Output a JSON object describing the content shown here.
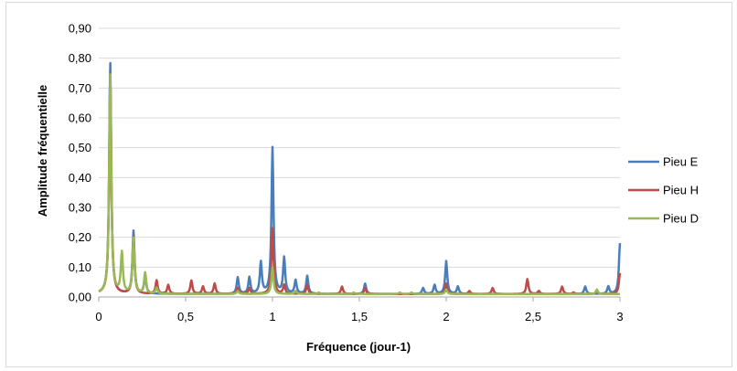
{
  "chart_data": {
    "type": "line",
    "title": "",
    "xlabel": "Fréquence (jour-1)",
    "ylabel": "Amplitude fréquentielle",
    "xlim": [
      0,
      3
    ],
    "ylim": [
      0,
      0.9
    ],
    "x_ticks": [
      "0",
      "0,5",
      "1",
      "1,5",
      "2",
      "2,5",
      "3"
    ],
    "x_tick_values": [
      0,
      0.5,
      1,
      1.5,
      2,
      2.5,
      3
    ],
    "y_ticks": [
      "0,00",
      "0,10",
      "0,20",
      "0,30",
      "0,40",
      "0,50",
      "0,60",
      "0,70",
      "0,80",
      "0,90"
    ],
    "y_tick_values": [
      0,
      0.1,
      0.2,
      0.3,
      0.4,
      0.5,
      0.6,
      0.7,
      0.8,
      0.9
    ],
    "grid": "horizontal",
    "legend_position": "right",
    "baseline": 0.01,
    "series": [
      {
        "name": "Pieu E",
        "color": "#4a7ebb",
        "peaks": [
          [
            0.066,
            0.79
          ],
          [
            0.2,
            0.22
          ],
          [
            0.267,
            0.07
          ],
          [
            0.8,
            0.065
          ],
          [
            0.867,
            0.065
          ],
          [
            0.933,
            0.115
          ],
          [
            1.0,
            0.5
          ],
          [
            1.067,
            0.13
          ],
          [
            1.133,
            0.055
          ],
          [
            1.2,
            0.07
          ],
          [
            1.533,
            0.045
          ],
          [
            1.867,
            0.03
          ],
          [
            1.933,
            0.04
          ],
          [
            2.0,
            0.12
          ],
          [
            2.067,
            0.035
          ],
          [
            2.8,
            0.035
          ],
          [
            2.933,
            0.035
          ],
          [
            3.0,
            0.18
          ]
        ]
      },
      {
        "name": "Pieu H",
        "color": "#be4b48",
        "peaks": [
          [
            0.066,
            0.75
          ],
          [
            0.2,
            0.2
          ],
          [
            0.333,
            0.055
          ],
          [
            0.4,
            0.04
          ],
          [
            0.533,
            0.055
          ],
          [
            0.6,
            0.035
          ],
          [
            0.667,
            0.045
          ],
          [
            0.8,
            0.03
          ],
          [
            0.867,
            0.03
          ],
          [
            1.0,
            0.23
          ],
          [
            1.067,
            0.04
          ],
          [
            1.2,
            0.04
          ],
          [
            1.4,
            0.035
          ],
          [
            1.533,
            0.03
          ],
          [
            2.0,
            0.045
          ],
          [
            2.133,
            0.02
          ],
          [
            2.267,
            0.03
          ],
          [
            2.467,
            0.06
          ],
          [
            2.533,
            0.02
          ],
          [
            2.667,
            0.035
          ],
          [
            2.733,
            0.015
          ],
          [
            2.867,
            0.02
          ],
          [
            3.0,
            0.08
          ]
        ]
      },
      {
        "name": "Pieu D",
        "color": "#98b954",
        "peaks": [
          [
            0.066,
            0.75
          ],
          [
            0.133,
            0.145
          ],
          [
            0.2,
            0.195
          ],
          [
            0.267,
            0.08
          ],
          [
            0.333,
            0.03
          ],
          [
            0.8,
            0.02
          ],
          [
            1.0,
            0.1
          ],
          [
            1.133,
            0.02
          ],
          [
            1.267,
            0.015
          ],
          [
            1.467,
            0.015
          ],
          [
            1.733,
            0.015
          ],
          [
            1.8,
            0.015
          ],
          [
            2.0,
            0.025
          ],
          [
            2.867,
            0.025
          ]
        ]
      }
    ]
  }
}
